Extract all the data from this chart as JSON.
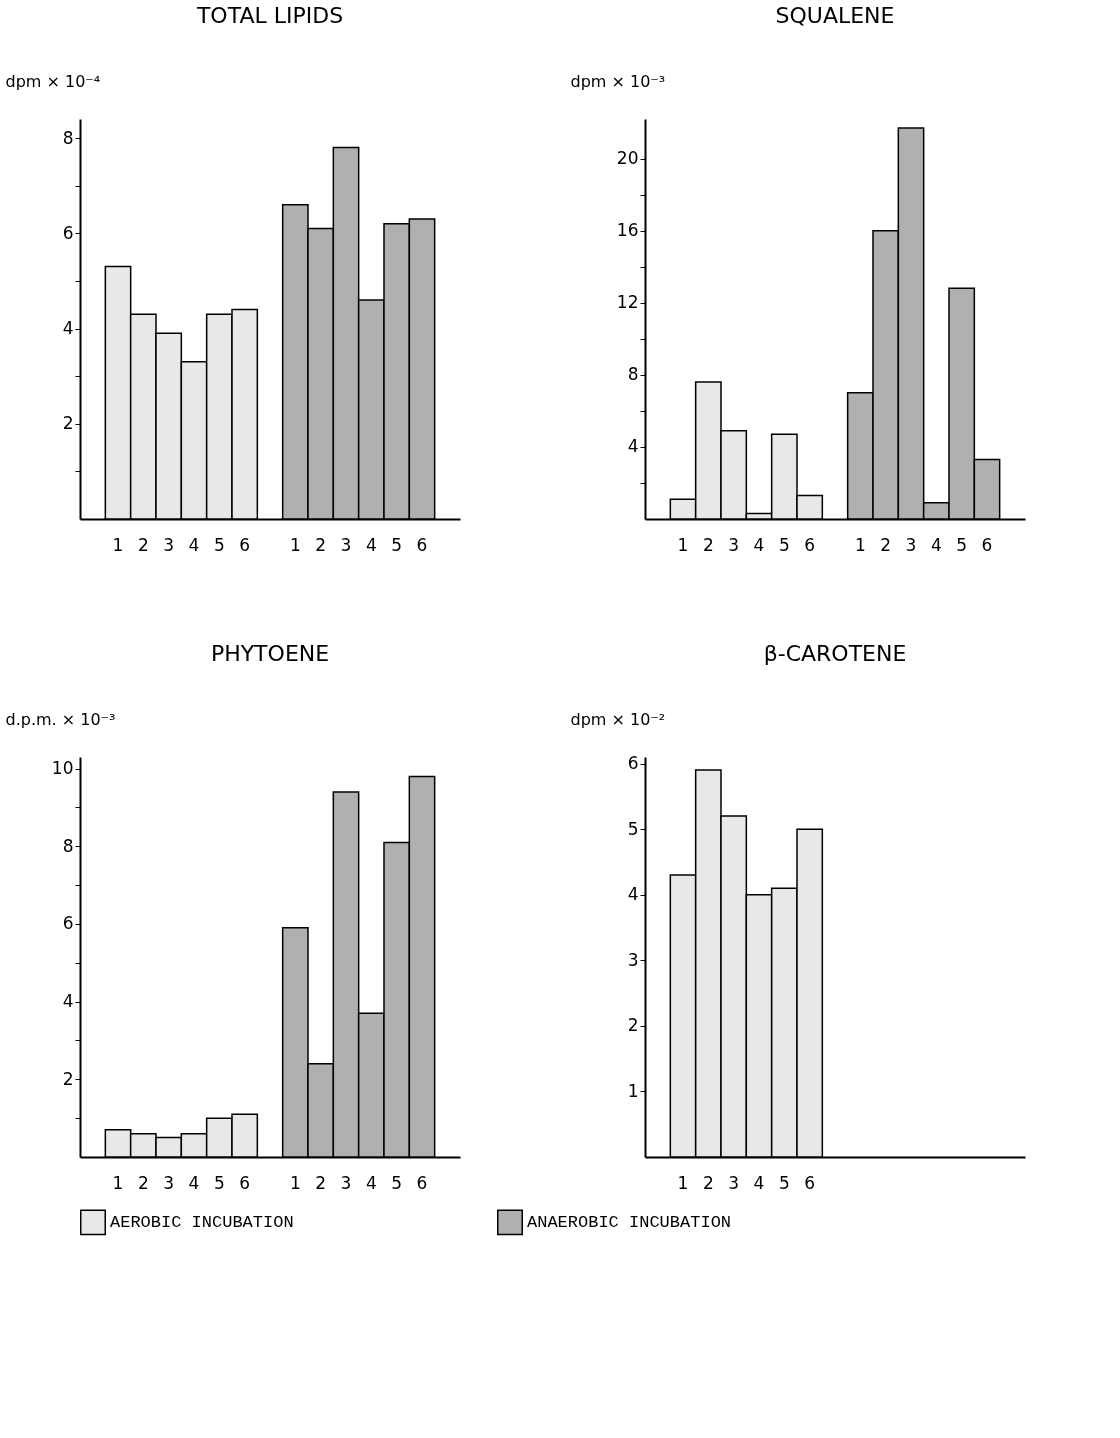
{
  "chart_data": [
    {
      "type": "bar",
      "title": "TOTAL LIPIDS",
      "ylabel": "dpm × 10⁻⁴",
      "categories": [
        null,
        "1",
        "2",
        "3",
        "4",
        "5",
        "6",
        null,
        "1",
        "2",
        "3",
        "4",
        "5",
        "6",
        null
      ],
      "ylim": [
        0,
        8.4
      ],
      "yticks": [
        {
          "value": 1,
          "label": null
        },
        2,
        {
          "value": 3,
          "label": null
        },
        4,
        {
          "value": 5,
          "label": null
        },
        6,
        {
          "value": 7,
          "label": null
        },
        8
      ],
      "grid": false,
      "legend": "bottom",
      "series": [
        {
          "name": "AEROBIC INCUBATION",
          "color": "#e8e8e8",
          "values": [
            null,
            5.3,
            4.3,
            3.9,
            3.3,
            4.3,
            4.4,
            null,
            null,
            null,
            null,
            null,
            null,
            null,
            null
          ]
        },
        {
          "name": "ANAEROBIC INCUBATION",
          "color": "#b0b0b0",
          "values": [
            null,
            null,
            null,
            null,
            null,
            null,
            null,
            null,
            6.6,
            6.1,
            7.8,
            4.6,
            6.2,
            6.3,
            null
          ]
        }
      ]
    },
    {
      "type": "bar",
      "title": "SQUALENE",
      "ylabel": "dpm × 10⁻³",
      "categories": [
        null,
        "1",
        "2",
        "3",
        "4",
        "5",
        "6",
        null,
        "1",
        "2",
        "3",
        "4",
        "5",
        "6",
        null
      ],
      "ylim": [
        0,
        22.2
      ],
      "yticks": [
        {
          "value": 2,
          "label": null
        },
        4,
        {
          "value": 6,
          "label": null
        },
        8,
        {
          "value": 10,
          "label": null
        },
        12,
        {
          "value": 14,
          "label": null
        },
        16,
        {
          "value": 18,
          "label": null
        },
        20
      ],
      "grid": false,
      "legend": "bottom",
      "series": [
        {
          "name": "AEROBIC INCUBATION",
          "color": "#e8e8e8",
          "values": [
            null,
            1.1,
            7.6,
            4.9,
            0.3,
            4.7,
            1.3,
            null,
            null,
            null,
            null,
            null,
            null,
            null,
            null
          ]
        },
        {
          "name": "ANAEROBIC INCUBATION",
          "color": "#b0b0b0",
          "values": [
            null,
            null,
            null,
            null,
            null,
            null,
            null,
            null,
            7.0,
            16.0,
            21.7,
            0.9,
            12.8,
            3.3,
            null
          ]
        }
      ]
    },
    {
      "type": "bar",
      "title": "PHYTOENE",
      "ylabel": "d.p.m. × 10⁻³",
      "categories": [
        null,
        "1",
        "2",
        "3",
        "4",
        "5",
        "6",
        null,
        "1",
        "2",
        "3",
        "4",
        "5",
        "6",
        null
      ],
      "ylim": [
        0,
        10.3
      ],
      "yticks": [
        {
          "value": 1,
          "label": null
        },
        2,
        {
          "value": 3,
          "label": null
        },
        4,
        {
          "value": 5,
          "label": null
        },
        6,
        {
          "value": 7,
          "label": null
        },
        8,
        {
          "value": 9,
          "label": null
        },
        10
      ],
      "grid": false,
      "legend": "bottom",
      "series": [
        {
          "name": "AEROBIC INCUBATION",
          "color": "#e8e8e8",
          "values": [
            null,
            0.7,
            0.6,
            0.5,
            0.6,
            1.0,
            1.1,
            null,
            null,
            null,
            null,
            null,
            null,
            null,
            null
          ]
        },
        {
          "name": "ANAEROBIC INCUBATION",
          "color": "#b0b0b0",
          "values": [
            null,
            null,
            null,
            null,
            null,
            null,
            null,
            null,
            5.9,
            2.4,
            9.4,
            3.7,
            8.1,
            9.8,
            null
          ]
        }
      ]
    },
    {
      "type": "bar",
      "title": "β-CAROTENE",
      "ylabel": "dpm × 10⁻²",
      "categories": [
        null,
        "1",
        "2",
        "3",
        "4",
        "5",
        "6",
        null,
        null,
        null,
        null,
        null,
        null,
        null,
        null
      ],
      "ylim": [
        0,
        6.1
      ],
      "yticks": [
        1,
        2,
        3,
        4,
        5,
        6
      ],
      "grid": false,
      "legend": "bottom",
      "series": [
        {
          "name": "AEROBIC INCUBATION",
          "color": "#e8e8e8",
          "values": [
            null,
            4.3,
            5.9,
            5.2,
            4.0,
            4.1,
            5.0,
            null,
            null,
            null,
            null,
            null,
            null,
            null,
            null
          ]
        }
      ]
    }
  ]
}
